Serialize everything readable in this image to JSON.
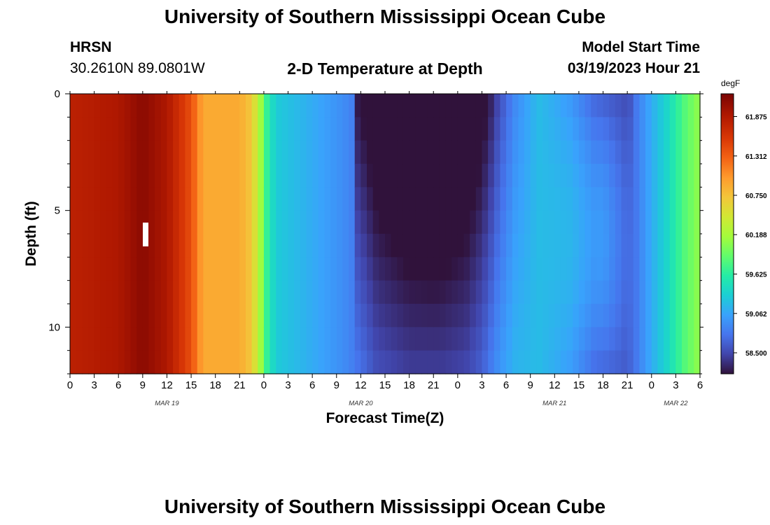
{
  "page": {
    "title": "University of Southern Mississippi Ocean Cube",
    "title_bottom": "University of Southern Mississippi Ocean Cube",
    "station": "HRSN",
    "location": "30.2610N  89.0801W",
    "subtitle": "2-D Temperature at Depth",
    "model_start_label": "Model Start Time",
    "model_start_value": "03/19/2023 Hour 21"
  },
  "chart_data": {
    "type": "heatmap",
    "title": "2-D Temperature at Depth",
    "xlabel": "Forecast Time(Z)",
    "ylabel": "Depth (ft)",
    "x_hours_range": [
      0,
      78
    ],
    "y_depth_range": [
      0,
      12
    ],
    "y_ticks": [
      0,
      5,
      10
    ],
    "x_tick_labels": [
      "0",
      "3",
      "6",
      "9",
      "12",
      "15",
      "18",
      "21",
      "0",
      "3",
      "6",
      "9",
      "12",
      "15",
      "18",
      "21",
      "0",
      "3",
      "6",
      "9",
      "12",
      "15",
      "18",
      "21",
      "0",
      "3",
      "6"
    ],
    "date_labels": [
      {
        "text": "MAR 19",
        "hour": 12
      },
      {
        "text": "MAR 20",
        "hour": 36
      },
      {
        "text": "MAR 21",
        "hour": 60
      },
      {
        "text": "MAR 22",
        "hour": 75
      }
    ],
    "colorbar": {
      "unit": "degF",
      "min": 58.2,
      "max": 62.2,
      "tick_labels": [
        "61.875",
        "61.312",
        "60.750",
        "60.188",
        "59.625",
        "59.062",
        "58.500"
      ]
    },
    "time_profile_degF": [
      {
        "hour": 0,
        "value": 61.8
      },
      {
        "hour": 6,
        "value": 61.9
      },
      {
        "hour": 9,
        "value": 62.1
      },
      {
        "hour": 12,
        "value": 61.9
      },
      {
        "hour": 15,
        "value": 61.4
      },
      {
        "hour": 16.5,
        "value": 60.9
      },
      {
        "hour": 21,
        "value": 60.9
      },
      {
        "hour": 22.5,
        "value": 60.7
      },
      {
        "hour": 23.5,
        "value": 60.2
      },
      {
        "hour": 24.5,
        "value": 59.6
      },
      {
        "hour": 25.5,
        "value": 59.3
      },
      {
        "hour": 30,
        "value": 59.1
      },
      {
        "hour": 34,
        "value": 58.9
      },
      {
        "hour": 36,
        "value": 58.75
      },
      {
        "hour": 38,
        "value": 58.55
      },
      {
        "hour": 42,
        "value": 58.45
      },
      {
        "hour": 46,
        "value": 58.45
      },
      {
        "hour": 49,
        "value": 58.5
      },
      {
        "hour": 51,
        "value": 58.65
      },
      {
        "hour": 53,
        "value": 58.95
      },
      {
        "hour": 55,
        "value": 59.15
      },
      {
        "hour": 58,
        "value": 59.2
      },
      {
        "hour": 62,
        "value": 59.0
      },
      {
        "hour": 65,
        "value": 58.7
      },
      {
        "hour": 69,
        "value": 58.6
      },
      {
        "hour": 72,
        "value": 59.1
      },
      {
        "hour": 74,
        "value": 59.4
      },
      {
        "hour": 76,
        "value": 59.8
      },
      {
        "hour": 78,
        "value": 60.1
      }
    ],
    "depth_anomaly_profiles": [
      {
        "hour": 35,
        "surface": -0.55,
        "bottom": 0.0
      },
      {
        "hour": 45,
        "surface": -0.75,
        "bottom": 0.0
      },
      {
        "hour": 52,
        "surface": -0.55,
        "bottom": 0.0
      },
      {
        "hour": 58,
        "surface": 0.0,
        "bottom": 0.0
      },
      {
        "hour": 66,
        "surface": -0.05,
        "bottom": 0.35
      },
      {
        "hour": 70,
        "surface": -0.1,
        "bottom": 0.05
      }
    ]
  }
}
